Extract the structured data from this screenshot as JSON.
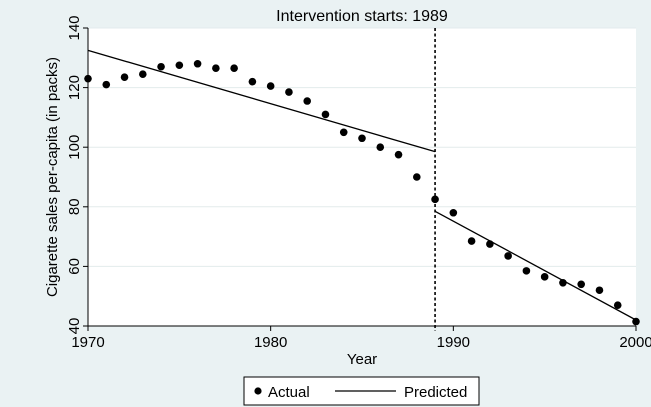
{
  "chart_data": {
    "type": "scatter",
    "title": "Intervention starts: 1989",
    "xlabel": "Year",
    "ylabel": "Cigarette sales per-capita (in packs)",
    "xlim": [
      1970,
      2000
    ],
    "ylim": [
      40,
      140
    ],
    "x_ticks": [
      1970,
      1980,
      1990,
      2000
    ],
    "y_ticks": [
      40,
      60,
      80,
      100,
      120,
      140
    ],
    "grid": true,
    "legend_position": "bottom",
    "intervention_x": 1989,
    "colors": {
      "background": "#eaf2f3",
      "plot_area": "#ffffff",
      "marks": "#000000",
      "grid": "#e3ebec"
    },
    "series": [
      {
        "name": "Actual",
        "type": "scatter",
        "x": [
          1970,
          1971,
          1972,
          1973,
          1974,
          1975,
          1976,
          1977,
          1978,
          1979,
          1980,
          1981,
          1982,
          1983,
          1984,
          1985,
          1986,
          1987,
          1988,
          1989,
          1990,
          1991,
          1992,
          1993,
          1994,
          1995,
          1996,
          1997,
          1998,
          1999,
          2000
        ],
        "y": [
          123,
          121,
          123.5,
          124.5,
          127,
          127.5,
          128,
          126.5,
          126.5,
          122,
          120.5,
          118.5,
          115.5,
          111,
          105,
          103,
          100,
          97.5,
          90,
          82.5,
          78,
          68.5,
          67.5,
          63.5,
          58.5,
          56.5,
          54.5,
          54,
          52,
          47,
          41.5
        ]
      },
      {
        "name": "Predicted",
        "type": "line",
        "segments": [
          {
            "x": [
              1970,
              1989
            ],
            "y": [
              132.5,
              98.5
            ]
          },
          {
            "x": [
              1989,
              2000
            ],
            "y": [
              78.5,
              42
            ]
          }
        ]
      }
    ]
  }
}
